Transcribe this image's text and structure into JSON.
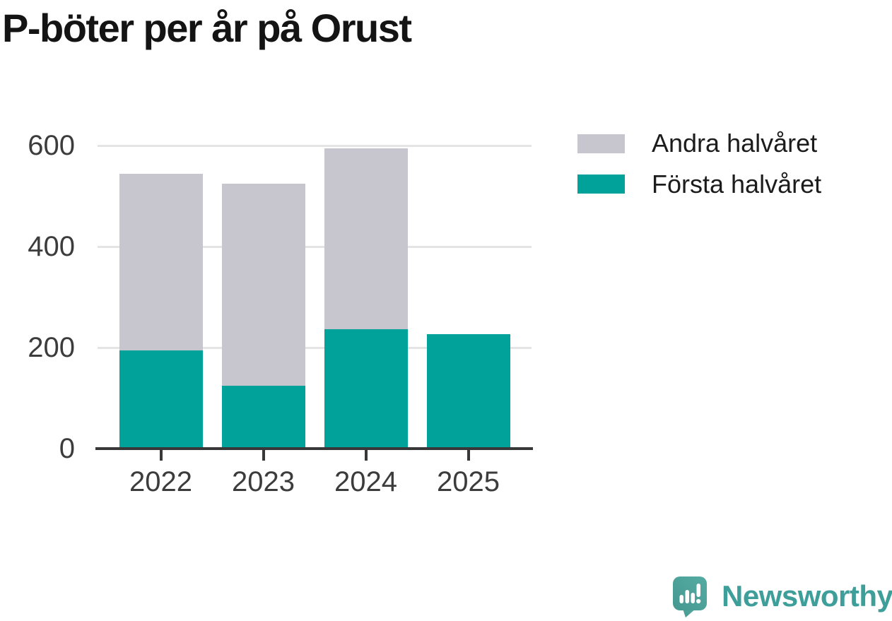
{
  "title": "P-böter per år på Orust",
  "chart_data": {
    "type": "bar",
    "stacked": true,
    "title": "P-böter per år på Orust",
    "xlabel": "",
    "ylabel": "",
    "categories": [
      "2022",
      "2023",
      "2024",
      "2025"
    ],
    "series": [
      {
        "name": "Första halvåret",
        "color": "#00a299",
        "values": [
          195,
          125,
          236,
          227
        ]
      },
      {
        "name": "Andra halvåret",
        "color": "#c7c5ce",
        "values": [
          349,
          399,
          359,
          0
        ]
      }
    ],
    "totals": [
      544,
      524,
      595,
      227
    ],
    "yticks": [
      0,
      200,
      400,
      600
    ],
    "ylim": [
      0,
      600
    ],
    "grid": true,
    "legend_position": "top-right"
  },
  "legend": {
    "items": [
      {
        "label": "Andra halvåret",
        "color": "#c7c5ce"
      },
      {
        "label": "Första halvåret",
        "color": "#00a299"
      }
    ]
  },
  "branding": {
    "logo_text": "Newsworthy",
    "logo_color": "#3e9e99",
    "icon": "newsworthy-speech-bubble-chart-icon",
    "icon_color": "#4ba49e"
  },
  "colors": {
    "first_half": "#00a299",
    "second_half": "#c7c5ce",
    "gridline": "#e4e4e4",
    "axis": "#383838",
    "tick_label": "#3c3c3c",
    "title_text": "#141414"
  }
}
